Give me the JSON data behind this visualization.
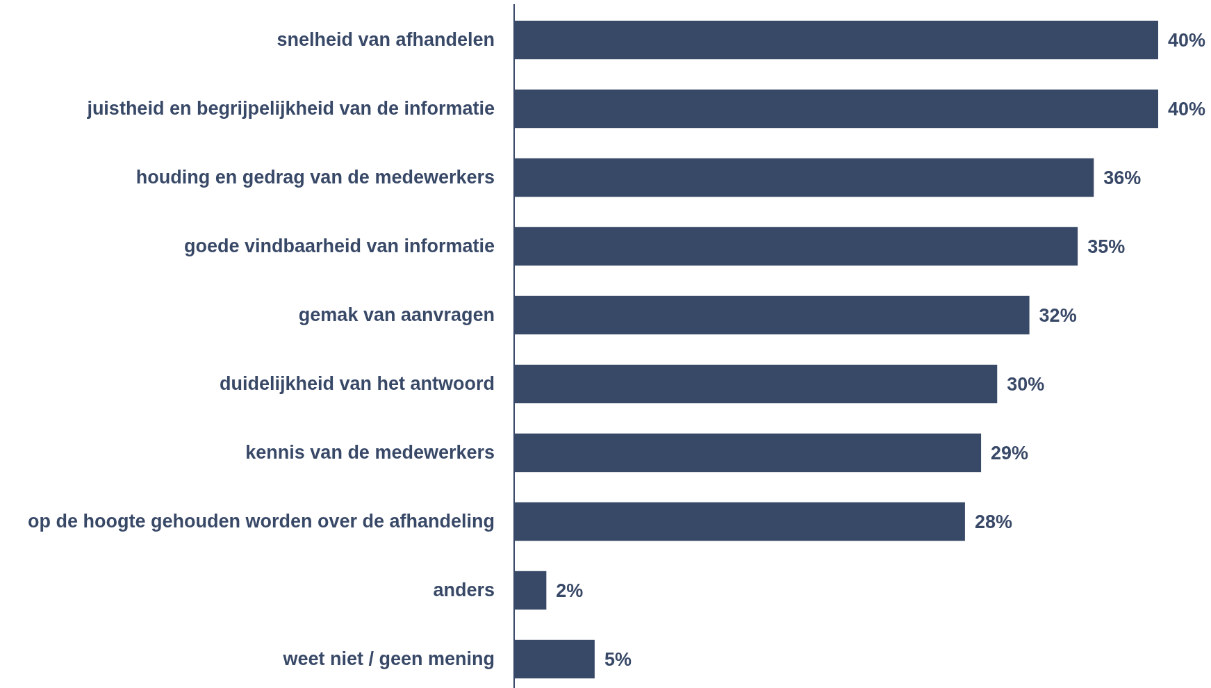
{
  "chart_data": {
    "type": "bar",
    "orientation": "horizontal",
    "categories": [
      "snelheid van afhandelen",
      "juistheid en begrijpelijkheid van de informatie",
      "houding en gedrag van de medewerkers",
      "goede vindbaarheid van informatie",
      "gemak van aanvragen",
      "duidelijkheid van het antwoord",
      "kennis van de medewerkers",
      "op de hoogte gehouden worden over de afhandeling",
      "anders",
      "weet niet / geen mening"
    ],
    "values": [
      40,
      40,
      36,
      35,
      32,
      30,
      29,
      28,
      2,
      5
    ],
    "value_labels": [
      "40%",
      "40%",
      "36%",
      "35%",
      "32%",
      "30%",
      "29%",
      "28%",
      "2%",
      "5%"
    ],
    "color": "#384867"
  }
}
